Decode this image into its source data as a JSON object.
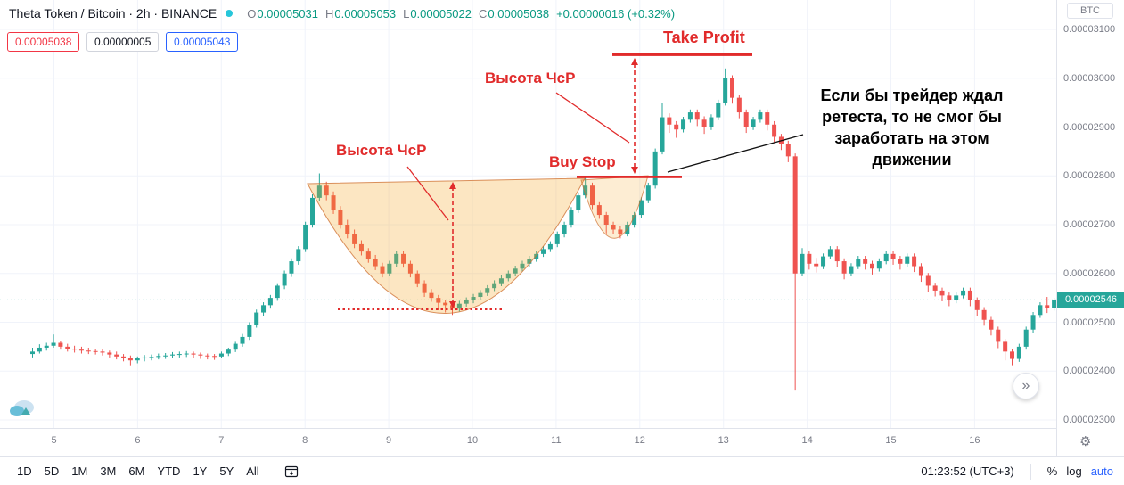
{
  "header": {
    "title": "Theta Token / Bitcoin · 2h · BINANCE",
    "ohlc_items": [
      {
        "label": "O",
        "value": "0.00005031"
      },
      {
        "label": "H",
        "value": "0.00005053"
      },
      {
        "label": "L",
        "value": "0.00005022"
      },
      {
        "label": "C",
        "value": "0.00005038"
      }
    ],
    "change": "+0.00000016 (+0.32%)",
    "price_boxes": [
      {
        "value": "0.00005038",
        "style": "red"
      },
      {
        "value": "0.00000005",
        "style": "plain"
      },
      {
        "value": "0.00005043",
        "style": "blue"
      }
    ]
  },
  "annotations": {
    "height_label_1": "Высота ЧсР",
    "height_label_2": "Высота ЧсР",
    "take_profit": "Take Profit",
    "buy_stop": "Buy Stop",
    "note_lines": [
      "Если бы трейдер ждал",
      "ретеста, то не смог бы",
      "заработать на этом",
      "движении"
    ]
  },
  "price_axis": {
    "unit": "BTC",
    "labels": [
      "0.00003100",
      "0.00003000",
      "0.00002900",
      "0.00002800",
      "0.00002700",
      "0.00002600",
      "0.00002500",
      "0.00002400",
      "0.00002300"
    ],
    "current": "0.00002546"
  },
  "time_axis": {
    "labels": [
      "5",
      "6",
      "7",
      "8",
      "9",
      "10",
      "11",
      "12",
      "13",
      "14",
      "15",
      "16"
    ]
  },
  "toolbar": {
    "ranges": [
      "1D",
      "5D",
      "1M",
      "3M",
      "6M",
      "YTD",
      "1Y",
      "5Y",
      "All"
    ],
    "clock": "01:23:52 (UTC+3)",
    "percent": "%",
    "log": "log",
    "auto": "auto"
  },
  "icons": {
    "jump_right": "»",
    "gear": "⚙"
  },
  "colors": {
    "up": "#26a69a",
    "down": "#ef5350",
    "annotation_red": "#e12b2b",
    "accent_blue": "#2962ff",
    "legend_green": "#089981",
    "badge": "#26a69a"
  },
  "chart_data": {
    "type": "candlestick",
    "title": "Theta Token / Bitcoin",
    "exchange": "BINANCE",
    "interval": "2h",
    "price_unit": "BTC",
    "price_multiplier": 1e-08,
    "note": "OHLC values are in units of 0.00000001 BTC; multiply by price_multiplier for absolute price",
    "y_axis": {
      "min": 2300,
      "max": 3100,
      "step": 100
    },
    "x_days": [
      "5",
      "6",
      "7",
      "8",
      "9",
      "10",
      "11",
      "12",
      "13",
      "14",
      "15",
      "16"
    ],
    "last_price": 2546,
    "up_color": "#26a69a",
    "down_color": "#ef5350",
    "candles_ohlc": [
      [
        2435,
        2448,
        2428,
        2440
      ],
      [
        2440,
        2455,
        2436,
        2448
      ],
      [
        2448,
        2458,
        2442,
        2452
      ],
      [
        2452,
        2475,
        2448,
        2458
      ],
      [
        2458,
        2462,
        2444,
        2450
      ],
      [
        2450,
        2456,
        2440,
        2446
      ],
      [
        2446,
        2452,
        2438,
        2444
      ],
      [
        2444,
        2450,
        2436,
        2442
      ],
      [
        2442,
        2448,
        2435,
        2441
      ],
      [
        2441,
        2446,
        2434,
        2440
      ],
      [
        2440,
        2445,
        2432,
        2438
      ],
      [
        2438,
        2442,
        2428,
        2434
      ],
      [
        2434,
        2440,
        2424,
        2430
      ],
      [
        2430,
        2435,
        2420,
        2427
      ],
      [
        2427,
        2432,
        2412,
        2422
      ],
      [
        2422,
        2430,
        2416,
        2426
      ],
      [
        2426,
        2433,
        2420,
        2428
      ],
      [
        2428,
        2434,
        2422,
        2429
      ],
      [
        2429,
        2436,
        2424,
        2431
      ],
      [
        2431,
        2437,
        2425,
        2432
      ],
      [
        2432,
        2439,
        2427,
        2434
      ],
      [
        2434,
        2440,
        2428,
        2435
      ],
      [
        2435,
        2441,
        2429,
        2436
      ],
      [
        2436,
        2440,
        2427,
        2434
      ],
      [
        2434,
        2438,
        2425,
        2432
      ],
      [
        2432,
        2436,
        2424,
        2431
      ],
      [
        2431,
        2435,
        2423,
        2430
      ],
      [
        2430,
        2440,
        2426,
        2436
      ],
      [
        2436,
        2448,
        2431,
        2444
      ],
      [
        2444,
        2460,
        2439,
        2456
      ],
      [
        2456,
        2476,
        2450,
        2470
      ],
      [
        2470,
        2500,
        2464,
        2495
      ],
      [
        2495,
        2526,
        2489,
        2520
      ],
      [
        2520,
        2541,
        2512,
        2535
      ],
      [
        2535,
        2556,
        2528,
        2550
      ],
      [
        2550,
        2580,
        2544,
        2575
      ],
      [
        2575,
        2606,
        2568,
        2600
      ],
      [
        2600,
        2631,
        2593,
        2625
      ],
      [
        2625,
        2656,
        2618,
        2650
      ],
      [
        2650,
        2706,
        2644,
        2700
      ],
      [
        2700,
        2762,
        2694,
        2755
      ],
      [
        2755,
        2805,
        2748,
        2780
      ],
      [
        2780,
        2788,
        2750,
        2760
      ],
      [
        2760,
        2768,
        2722,
        2730
      ],
      [
        2730,
        2738,
        2692,
        2700
      ],
      [
        2700,
        2710,
        2672,
        2680
      ],
      [
        2680,
        2690,
        2652,
        2660
      ],
      [
        2660,
        2668,
        2637,
        2645
      ],
      [
        2645,
        2652,
        2622,
        2630
      ],
      [
        2630,
        2638,
        2607,
        2615
      ],
      [
        2615,
        2622,
        2592,
        2600
      ],
      [
        2600,
        2626,
        2594,
        2620
      ],
      [
        2620,
        2646,
        2614,
        2640
      ],
      [
        2640,
        2646,
        2612,
        2620
      ],
      [
        2620,
        2626,
        2592,
        2600
      ],
      [
        2600,
        2606,
        2572,
        2580
      ],
      [
        2580,
        2586,
        2552,
        2560
      ],
      [
        2560,
        2568,
        2542,
        2550
      ],
      [
        2550,
        2556,
        2525,
        2540
      ],
      [
        2540,
        2546,
        2520,
        2535
      ],
      [
        2535,
        2540,
        2515,
        2528
      ],
      [
        2528,
        2544,
        2522,
        2538
      ],
      [
        2538,
        2551,
        2532,
        2545
      ],
      [
        2545,
        2558,
        2539,
        2552
      ],
      [
        2552,
        2566,
        2546,
        2560
      ],
      [
        2560,
        2576,
        2554,
        2570
      ],
      [
        2570,
        2586,
        2564,
        2580
      ],
      [
        2580,
        2596,
        2574,
        2590
      ],
      [
        2590,
        2606,
        2584,
        2600
      ],
      [
        2600,
        2616,
        2594,
        2610
      ],
      [
        2610,
        2626,
        2604,
        2620
      ],
      [
        2620,
        2636,
        2614,
        2630
      ],
      [
        2630,
        2646,
        2624,
        2640
      ],
      [
        2640,
        2656,
        2634,
        2650
      ],
      [
        2650,
        2666,
        2644,
        2660
      ],
      [
        2660,
        2686,
        2654,
        2680
      ],
      [
        2680,
        2706,
        2674,
        2700
      ],
      [
        2700,
        2736,
        2694,
        2730
      ],
      [
        2730,
        2766,
        2724,
        2760
      ],
      [
        2760,
        2800,
        2754,
        2780
      ],
      [
        2780,
        2786,
        2732,
        2740
      ],
      [
        2740,
        2746,
        2712,
        2720
      ],
      [
        2720,
        2726,
        2682,
        2700
      ],
      [
        2700,
        2706,
        2680,
        2690
      ],
      [
        2690,
        2698,
        2672,
        2680
      ],
      [
        2680,
        2706,
        2676,
        2700
      ],
      [
        2700,
        2726,
        2694,
        2720
      ],
      [
        2720,
        2756,
        2714,
        2750
      ],
      [
        2750,
        2786,
        2744,
        2780
      ],
      [
        2780,
        2856,
        2774,
        2850
      ],
      [
        2850,
        2950,
        2844,
        2920
      ],
      [
        2920,
        2928,
        2888,
        2905
      ],
      [
        2905,
        2912,
        2878,
        2895
      ],
      [
        2895,
        2921,
        2889,
        2915
      ],
      [
        2915,
        2936,
        2909,
        2930
      ],
      [
        2930,
        2936,
        2902,
        2915
      ],
      [
        2915,
        2922,
        2886,
        2900
      ],
      [
        2900,
        2926,
        2894,
        2920
      ],
      [
        2920,
        2956,
        2914,
        2950
      ],
      [
        2950,
        3020,
        2944,
        3000
      ],
      [
        3000,
        3006,
        2948,
        2960
      ],
      [
        2960,
        2966,
        2918,
        2930
      ],
      [
        2930,
        2936,
        2888,
        2900
      ],
      [
        2900,
        2921,
        2894,
        2915
      ],
      [
        2915,
        2936,
        2909,
        2930
      ],
      [
        2930,
        2936,
        2893,
        2905
      ],
      [
        2905,
        2912,
        2868,
        2880
      ],
      [
        2880,
        2886,
        2853,
        2865
      ],
      [
        2865,
        2872,
        2828,
        2840
      ],
      [
        2840,
        2846,
        2360,
        2600
      ],
      [
        2600,
        2652,
        2594,
        2640
      ],
      [
        2640,
        2646,
        2608,
        2620
      ],
      [
        2620,
        2632,
        2602,
        2615
      ],
      [
        2615,
        2641,
        2609,
        2635
      ],
      [
        2635,
        2656,
        2629,
        2650
      ],
      [
        2650,
        2656,
        2613,
        2625
      ],
      [
        2625,
        2631,
        2588,
        2600
      ],
      [
        2600,
        2621,
        2594,
        2615
      ],
      [
        2615,
        2636,
        2609,
        2630
      ],
      [
        2630,
        2636,
        2608,
        2620
      ],
      [
        2620,
        2626,
        2598,
        2610
      ],
      [
        2610,
        2631,
        2604,
        2625
      ],
      [
        2625,
        2646,
        2619,
        2640
      ],
      [
        2640,
        2646,
        2618,
        2630
      ],
      [
        2630,
        2636,
        2608,
        2620
      ],
      [
        2620,
        2641,
        2614,
        2635
      ],
      [
        2635,
        2641,
        2603,
        2615
      ],
      [
        2615,
        2621,
        2583,
        2595
      ],
      [
        2595,
        2601,
        2563,
        2575
      ],
      [
        2575,
        2581,
        2553,
        2565
      ],
      [
        2565,
        2571,
        2543,
        2555
      ],
      [
        2555,
        2561,
        2533,
        2545
      ],
      [
        2545,
        2561,
        2539,
        2555
      ],
      [
        2555,
        2571,
        2549,
        2565
      ],
      [
        2565,
        2571,
        2533,
        2545
      ],
      [
        2545,
        2551,
        2513,
        2525
      ],
      [
        2525,
        2531,
        2493,
        2505
      ],
      [
        2505,
        2511,
        2473,
        2485
      ],
      [
        2485,
        2491,
        2447,
        2460
      ],
      [
        2460,
        2466,
        2422,
        2440
      ],
      [
        2440,
        2446,
        2412,
        2425
      ],
      [
        2425,
        2456,
        2419,
        2450
      ],
      [
        2450,
        2491,
        2444,
        2485
      ],
      [
        2485,
        2521,
        2479,
        2515
      ],
      [
        2515,
        2541,
        2509,
        2535
      ],
      [
        2535,
        2552,
        2519,
        2530
      ],
      [
        2530,
        2550,
        2524,
        2546
      ]
    ]
  }
}
